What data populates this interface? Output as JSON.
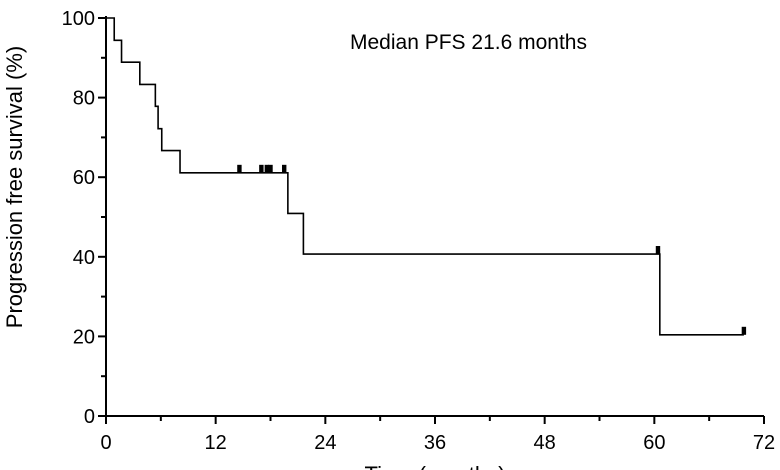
{
  "chart_data": {
    "type": "line",
    "subtype": "kaplan-meier",
    "title": "",
    "xlabel": "Time (months)",
    "ylabel": "Progression free survival (%)",
    "xlim": [
      0,
      72
    ],
    "ylim": [
      0,
      100
    ],
    "xticks": [
      0,
      12,
      24,
      36,
      48,
      60,
      72
    ],
    "yticks": [
      0,
      20,
      40,
      60,
      80,
      100
    ],
    "grid": false,
    "annotation": "Median PFS 21.6 months",
    "series": [
      {
        "steps": [
          {
            "x": 0,
            "y": 100
          },
          {
            "x": 0.9,
            "y": 94.4
          },
          {
            "x": 1.7,
            "y": 88.9
          },
          {
            "x": 3.7,
            "y": 83.3
          },
          {
            "x": 5.4,
            "y": 77.8
          },
          {
            "x": 5.7,
            "y": 72.2
          },
          {
            "x": 6.1,
            "y": 66.7
          },
          {
            "x": 8.1,
            "y": 61.1
          },
          {
            "x": 19.9,
            "y": 50.9
          },
          {
            "x": 21.6,
            "y": 40.7
          },
          {
            "x": 60.6,
            "y": 20.4
          }
        ],
        "end_x": 69.8,
        "censored": [
          {
            "x": 14.6,
            "y": 61.1
          },
          {
            "x": 17.0,
            "y": 61.1
          },
          {
            "x": 17.6,
            "y": 61.1
          },
          {
            "x": 18.0,
            "y": 61.1
          },
          {
            "x": 19.5,
            "y": 61.1
          },
          {
            "x": 60.4,
            "y": 40.7
          },
          {
            "x": 69.8,
            "y": 20.4
          }
        ]
      }
    ]
  }
}
